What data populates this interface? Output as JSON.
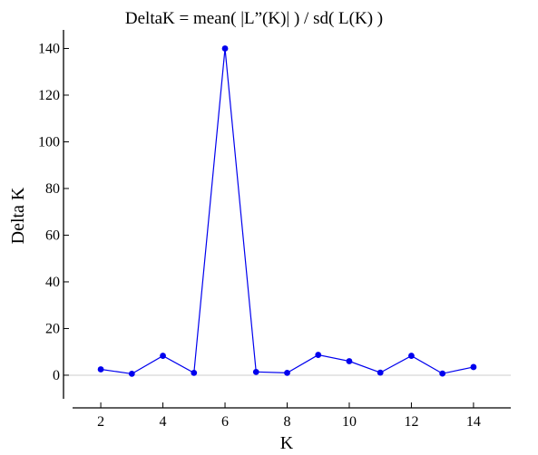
{
  "chart_data": {
    "type": "line",
    "title": "DeltaK = mean( |L”(K)| ) / sd( L(K) )",
    "xlabel": "K",
    "ylabel": "Delta K",
    "x": [
      2,
      3,
      4,
      5,
      6,
      7,
      8,
      9,
      10,
      11,
      12,
      13,
      14
    ],
    "series": [
      {
        "values": [
          2.5,
          0.6,
          8.3,
          1.0,
          140.0,
          1.4,
          1.0,
          8.7,
          6.0,
          1.1,
          8.3,
          0.7,
          3.5
        ]
      }
    ],
    "xlim": [
      0.8,
      15.2
    ],
    "ylim": [
      -14,
      153
    ],
    "xticks": [
      "2",
      "4",
      "6",
      "8",
      "10",
      "12",
      "14"
    ],
    "yticks": [
      "0",
      "20",
      "40",
      "60",
      "80",
      "100",
      "120",
      "140"
    ],
    "grid": false,
    "colors": {
      "series": "#0000ee",
      "zero_line": "#cccccc",
      "axis": "#000000"
    }
  }
}
